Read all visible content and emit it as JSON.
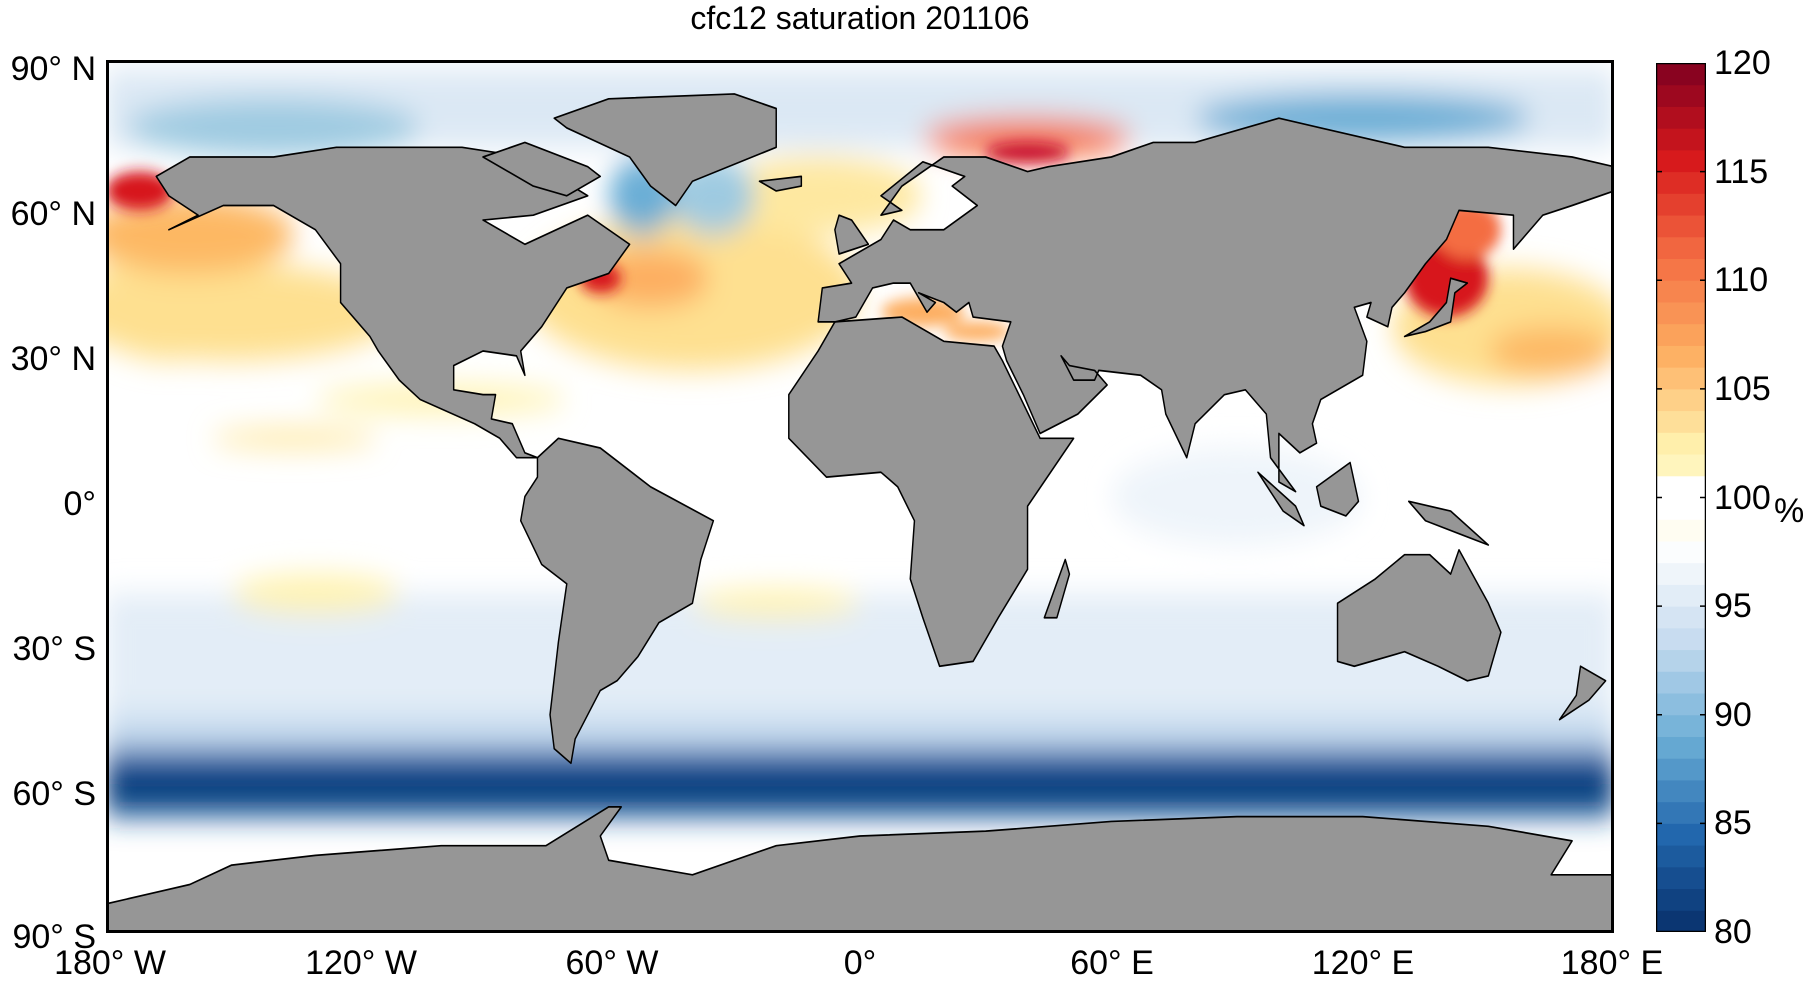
{
  "chart_data": {
    "type": "heatmap",
    "title": "cfc12 saturation 201106",
    "projection": "equirectangular world map",
    "xlim": [
      -180,
      180
    ],
    "ylim": [
      -90,
      90
    ],
    "x_ticks": [
      -180,
      -120,
      -60,
      0,
      60,
      120,
      180
    ],
    "x_tick_labels": [
      "180° W",
      "120° W",
      "60° W",
      "0°",
      "60° E",
      "120° E",
      "180° E"
    ],
    "y_ticks": [
      90,
      60,
      30,
      0,
      -30,
      -60,
      -90
    ],
    "y_tick_labels": [
      "90° N",
      "60° N",
      "30° N",
      "0°",
      "30° S",
      "60° S",
      "90° S"
    ],
    "colorbar": {
      "clim": [
        80,
        120
      ],
      "ticks": [
        120,
        115,
        110,
        105,
        100,
        95,
        90,
        85,
        80
      ],
      "tick_labels": [
        "120",
        "115",
        "110",
        "105",
        "100",
        "95",
        "90",
        "85",
        "80"
      ],
      "unit": "%",
      "levels": 40,
      "colormap_stops": [
        "#08306b",
        "#2166ac",
        "#6baed6",
        "#c6dbef",
        "#ffffff",
        "#fff3b0",
        "#fdae61",
        "#f46d43",
        "#d7191c",
        "#7f0020"
      ]
    },
    "land_color": "#969696",
    "regions": [
      {
        "name": "Southern Ocean 55-75S",
        "value_pct": 82
      },
      {
        "name": "North Pacific subtropics",
        "value_pct": 104
      },
      {
        "name": "North Atlantic",
        "value_pct": 105
      },
      {
        "name": "Sea of Japan / Okhotsk",
        "value_pct": 114
      },
      {
        "name": "Barents Sea",
        "value_pct": 116
      },
      {
        "name": "Tropical / South oceans",
        "value_pct": 98
      },
      {
        "name": "Labrador Sea / Baffin",
        "value_pct": 92
      }
    ]
  }
}
